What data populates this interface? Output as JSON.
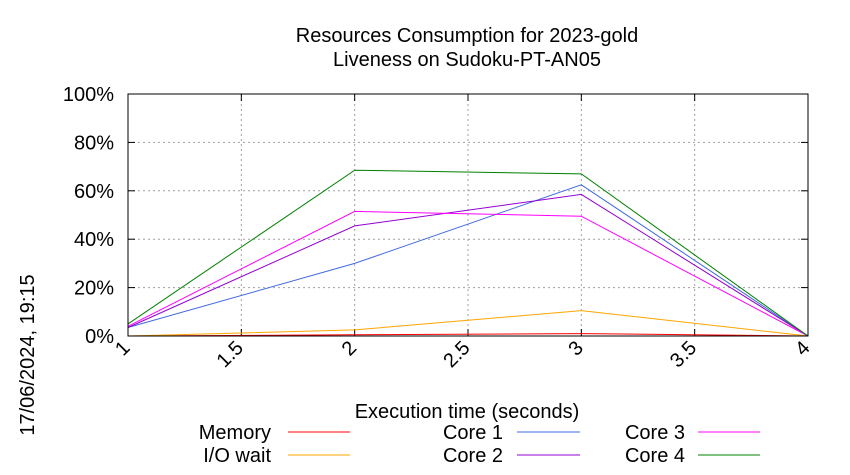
{
  "chart_data": {
    "type": "line",
    "title": "Resources Consumption for 2023-gold",
    "subtitle": "Liveness on Sudoku-PT-AN05",
    "xlabel": "Execution time (seconds)",
    "ylabel": "",
    "timestamp": "17/06/2024, 19:15",
    "xlim": [
      1,
      4
    ],
    "ylim": [
      0,
      100
    ],
    "x_ticks": [
      1,
      1.5,
      2,
      2.5,
      3,
      3.5,
      4
    ],
    "x_tick_labels": [
      "1",
      "1.5",
      "2",
      "2.5",
      "3",
      "3.5",
      "4"
    ],
    "y_ticks": [
      0,
      20,
      40,
      60,
      80,
      100
    ],
    "y_tick_labels": [
      "0%",
      "20%",
      "40%",
      "60%",
      "80%",
      "100%"
    ],
    "grid": true,
    "legend_position": "bottom",
    "x": [
      1,
      2,
      3,
      4
    ],
    "series": [
      {
        "name": "Memory",
        "color": "#ff0000",
        "values": [
          0,
          0.5,
          1,
          0
        ]
      },
      {
        "name": "I/O wait",
        "color": "#ffa500",
        "values": [
          0,
          2.5,
          10.5,
          0
        ]
      },
      {
        "name": "Core 1",
        "color": "#4169e1",
        "values": [
          3.5,
          30,
          62.5,
          0
        ]
      },
      {
        "name": "Core 2",
        "color": "#9400d3",
        "values": [
          3.5,
          45.5,
          58.5,
          0
        ]
      },
      {
        "name": "Core 3",
        "color": "#ff00ff",
        "values": [
          4,
          51.5,
          49.5,
          0
        ]
      },
      {
        "name": "Core 4",
        "color": "#008000",
        "values": [
          5,
          68.5,
          67,
          0
        ]
      }
    ]
  }
}
